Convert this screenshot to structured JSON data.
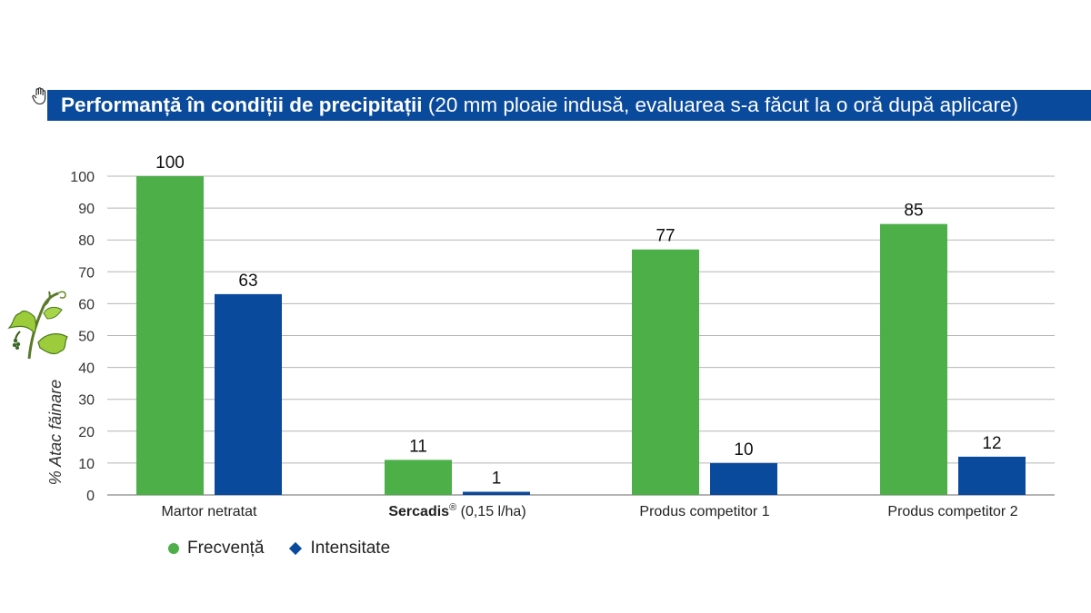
{
  "title": {
    "bold": "Performanță în condiții de precipitații",
    "normal": "(20 mm ploaie indusă, evaluarea s-a făcut la o oră după aplicare)"
  },
  "colors": {
    "title_bg": "#0a4a9c",
    "frecventa": "#4caf48",
    "intensitate": "#0a4a9c",
    "grid": "#b5b5b5"
  },
  "chart_data": {
    "type": "bar",
    "ylabel": "% Atac făinare",
    "ylim": [
      0,
      100
    ],
    "yticks": [
      0,
      10,
      20,
      30,
      40,
      50,
      60,
      70,
      80,
      90,
      100
    ],
    "grid": true,
    "legend_placement": "bottom-left",
    "categories": [
      {
        "bold": "",
        "text": "Martor netratat"
      },
      {
        "bold": "Sercadis",
        "sup": "®",
        "text": " (0,15 l/ha)"
      },
      {
        "bold": "",
        "text": "Produs competitor 1"
      },
      {
        "bold": "",
        "text": "Produs competitor 2"
      }
    ],
    "series": [
      {
        "name": "Frecvență",
        "values": [
          100,
          11,
          77,
          85
        ],
        "labels": [
          "100",
          "11",
          "77",
          "85"
        ]
      },
      {
        "name": "Intensitate",
        "values": [
          63,
          1,
          10,
          12
        ],
        "labels": [
          "63",
          "1",
          "10",
          "12"
        ]
      }
    ]
  },
  "icons": {
    "corner": "hand-pointer-icon",
    "decoration": "vine-leaf-icon"
  }
}
